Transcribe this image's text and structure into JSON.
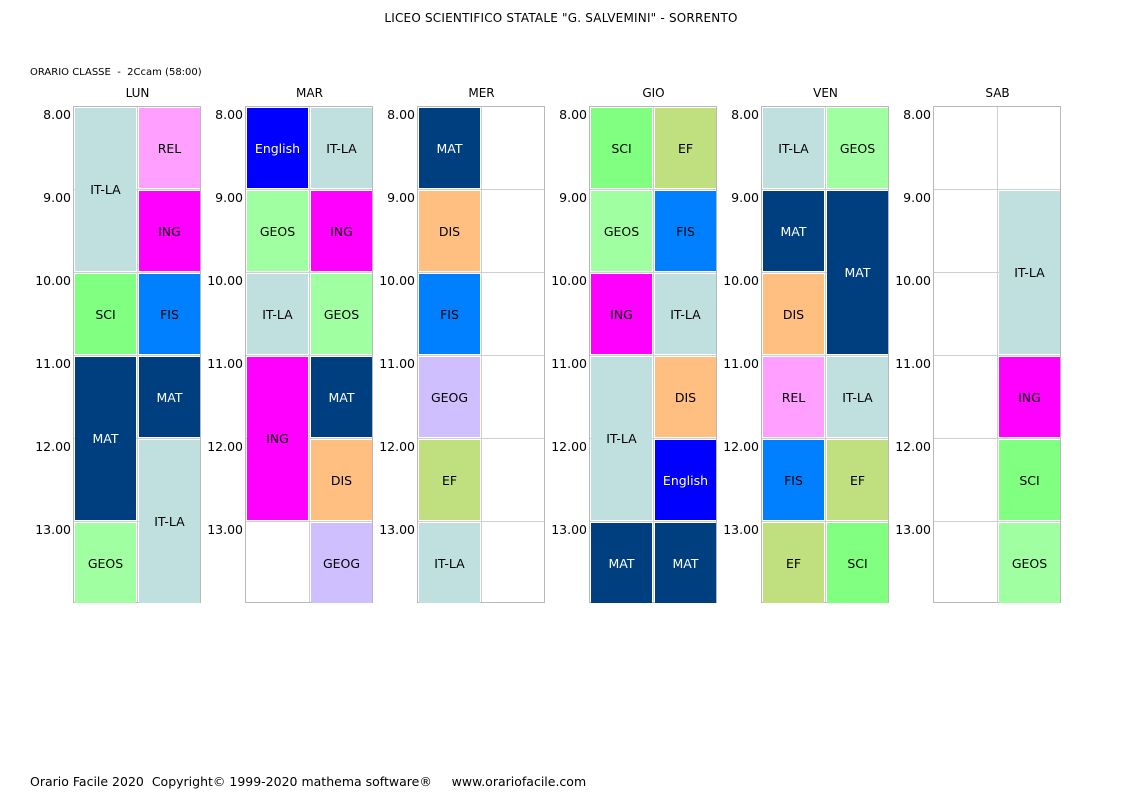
{
  "header": {
    "title": "LICEO SCIENTIFICO STATALE \"G. SALVEMINI\" - SORRENTO",
    "class_info": "ORARIO CLASSE  -  2Ccam (58:00)"
  },
  "footer": {
    "text": "Orario Facile 2020  Copyright© 1999-2020 mathema software®     www.orariofacile.com"
  },
  "colors": {
    "IT-LA": "#c0e0e0",
    "REL": "#ff9fff",
    "ING": "#ff00ff",
    "SCI": "#80ff80",
    "FIS": "#0080ff",
    "MAT": "#003f7f",
    "GEOS": "#a0ffa0",
    "English": "#0000ff",
    "DIS": "#ffbf80",
    "GEOG": "#cfbfff",
    "EF": "#c0e080"
  },
  "times": [
    "8.00",
    "9.00",
    "10.00",
    "11.00",
    "12.00",
    "13.00"
  ],
  "days": [
    {
      "name": "LUN",
      "lessons": [
        {
          "subject": "IT-LA",
          "col": 0,
          "start": 0,
          "span": 2
        },
        {
          "subject": "REL",
          "col": 1,
          "start": 0,
          "span": 1
        },
        {
          "subject": "ING",
          "col": 1,
          "start": 1,
          "span": 1
        },
        {
          "subject": "SCI",
          "col": 0,
          "start": 2,
          "span": 1
        },
        {
          "subject": "FIS",
          "col": 1,
          "start": 2,
          "span": 1
        },
        {
          "subject": "MAT",
          "col": 0,
          "start": 3,
          "span": 2
        },
        {
          "subject": "MAT",
          "col": 1,
          "start": 3,
          "span": 1
        },
        {
          "subject": "IT-LA",
          "col": 1,
          "start": 4,
          "span": 2
        },
        {
          "subject": "GEOS",
          "col": 0,
          "start": 5,
          "span": 1
        }
      ]
    },
    {
      "name": "MAR",
      "lessons": [
        {
          "subject": "English",
          "col": 0,
          "start": 0,
          "span": 1
        },
        {
          "subject": "IT-LA",
          "col": 1,
          "start": 0,
          "span": 1
        },
        {
          "subject": "GEOS",
          "col": 0,
          "start": 1,
          "span": 1
        },
        {
          "subject": "ING",
          "col": 1,
          "start": 1,
          "span": 1
        },
        {
          "subject": "IT-LA",
          "col": 0,
          "start": 2,
          "span": 1
        },
        {
          "subject": "GEOS",
          "col": 1,
          "start": 2,
          "span": 1
        },
        {
          "subject": "ING",
          "col": 0,
          "start": 3,
          "span": 2
        },
        {
          "subject": "MAT",
          "col": 1,
          "start": 3,
          "span": 1
        },
        {
          "subject": "DIS",
          "col": 1,
          "start": 4,
          "span": 1
        },
        {
          "subject": "GEOG",
          "col": 1,
          "start": 5,
          "span": 1
        }
      ]
    },
    {
      "name": "MER",
      "lessons": [
        {
          "subject": "MAT",
          "col": 0,
          "start": 0,
          "span": 1
        },
        {
          "subject": "DIS",
          "col": 0,
          "start": 1,
          "span": 1
        },
        {
          "subject": "FIS",
          "col": 0,
          "start": 2,
          "span": 1
        },
        {
          "subject": "GEOG",
          "col": 0,
          "start": 3,
          "span": 1
        },
        {
          "subject": "EF",
          "col": 0,
          "start": 4,
          "span": 1
        },
        {
          "subject": "IT-LA",
          "col": 0,
          "start": 5,
          "span": 1
        }
      ]
    },
    {
      "name": "GIO",
      "lessons": [
        {
          "subject": "SCI",
          "col": 0,
          "start": 0,
          "span": 1
        },
        {
          "subject": "EF",
          "col": 1,
          "start": 0,
          "span": 1
        },
        {
          "subject": "GEOS",
          "col": 0,
          "start": 1,
          "span": 1
        },
        {
          "subject": "FIS",
          "col": 1,
          "start": 1,
          "span": 1
        },
        {
          "subject": "ING",
          "col": 0,
          "start": 2,
          "span": 1
        },
        {
          "subject": "IT-LA",
          "col": 1,
          "start": 2,
          "span": 1
        },
        {
          "subject": "IT-LA",
          "col": 0,
          "start": 3,
          "span": 2
        },
        {
          "subject": "DIS",
          "col": 1,
          "start": 3,
          "span": 1
        },
        {
          "subject": "English",
          "col": 1,
          "start": 4,
          "span": 1
        },
        {
          "subject": "MAT",
          "col": 0,
          "start": 5,
          "span": 1
        },
        {
          "subject": "MAT",
          "col": 1,
          "start": 5,
          "span": 1
        }
      ]
    },
    {
      "name": "VEN",
      "lessons": [
        {
          "subject": "IT-LA",
          "col": 0,
          "start": 0,
          "span": 1
        },
        {
          "subject": "GEOS",
          "col": 1,
          "start": 0,
          "span": 1
        },
        {
          "subject": "MAT",
          "col": 0,
          "start": 1,
          "span": 1
        },
        {
          "subject": "MAT",
          "col": 1,
          "start": 1,
          "span": 2
        },
        {
          "subject": "DIS",
          "col": 0,
          "start": 2,
          "span": 1
        },
        {
          "subject": "REL",
          "col": 0,
          "start": 3,
          "span": 1
        },
        {
          "subject": "IT-LA",
          "col": 1,
          "start": 3,
          "span": 1
        },
        {
          "subject": "FIS",
          "col": 0,
          "start": 4,
          "span": 1
        },
        {
          "subject": "EF",
          "col": 1,
          "start": 4,
          "span": 1
        },
        {
          "subject": "EF",
          "col": 0,
          "start": 5,
          "span": 1
        },
        {
          "subject": "SCI",
          "col": 1,
          "start": 5,
          "span": 1
        }
      ]
    },
    {
      "name": "SAB",
      "lessons": [
        {
          "subject": "IT-LA",
          "col": 1,
          "start": 1,
          "span": 2
        },
        {
          "subject": "ING",
          "col": 1,
          "start": 3,
          "span": 1
        },
        {
          "subject": "SCI",
          "col": 1,
          "start": 4,
          "span": 1
        },
        {
          "subject": "GEOS",
          "col": 1,
          "start": 5,
          "span": 1
        }
      ]
    }
  ]
}
